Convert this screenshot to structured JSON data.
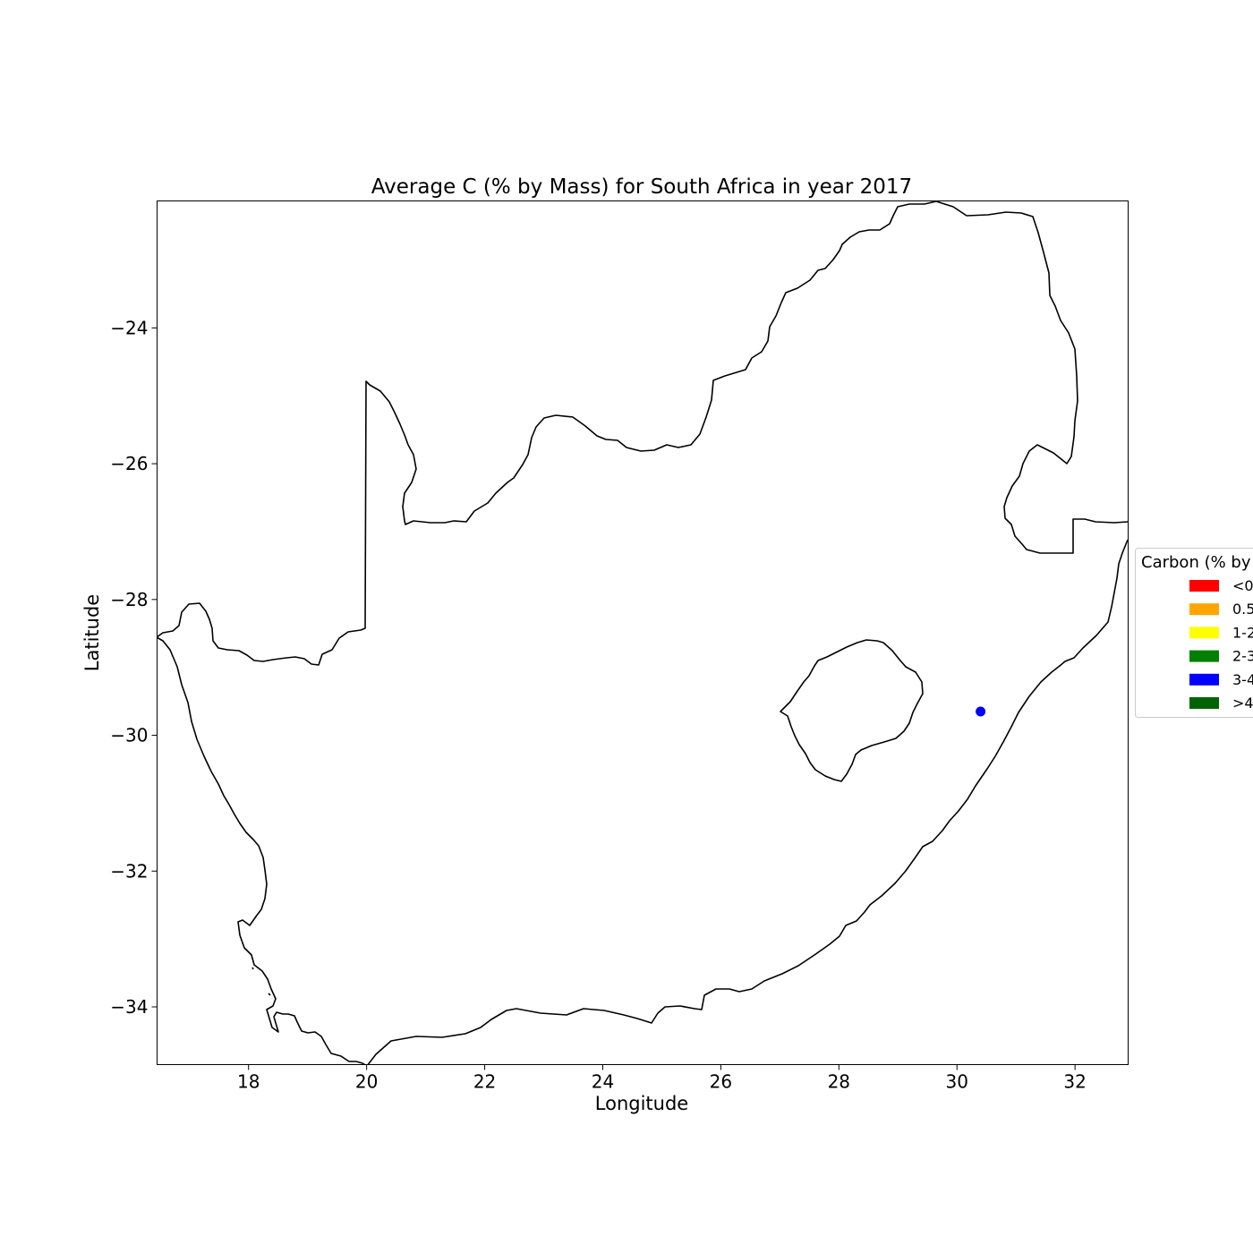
{
  "chart_data": {
    "type": "scatter",
    "title": "Average C (% by Mass) for South Africa in year 2017",
    "xlabel": "Longitude",
    "ylabel": "Latitude",
    "xlim": [
      16.45,
      32.9
    ],
    "ylim": [
      -34.85,
      -22.13
    ],
    "xticks": [
      18,
      20,
      22,
      24,
      26,
      28,
      30,
      32
    ],
    "yticks": [
      -24,
      -26,
      -28,
      -30,
      -32,
      -34
    ],
    "grid": false,
    "basemap": "South Africa and Lesotho borders (outline)",
    "points": [
      {
        "lon": 30.4,
        "lat": -29.65,
        "category": "3-4",
        "color": "#0000ff"
      }
    ],
    "legend": {
      "title": "Carbon (% by",
      "placement": "right, outside axes (clipped at page edge)",
      "entries": [
        {
          "label": "<0",
          "color": "#ff0000"
        },
        {
          "label": "0.5",
          "color": "#ffa500"
        },
        {
          "label": "1-2",
          "color": "#ffff00"
        },
        {
          "label": "2-3",
          "color": "#008000"
        },
        {
          "label": "3-4",
          "color": "#0000ff"
        },
        {
          "label": ">4",
          "color": "#006400"
        }
      ]
    }
  }
}
